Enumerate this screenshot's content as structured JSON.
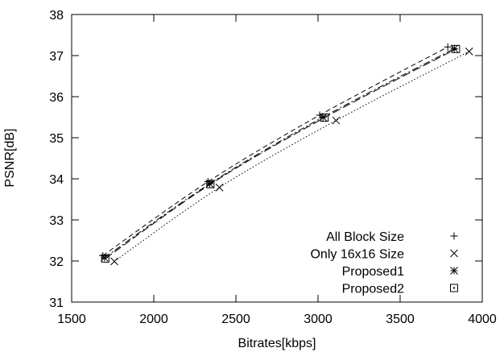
{
  "chart_data": {
    "type": "line",
    "xlabel": "Bitrates[kbps]",
    "ylabel": "PSNR[dB]",
    "xlim": [
      1500,
      4000
    ],
    "ylim": [
      31,
      38
    ],
    "xticks": [
      1500,
      2000,
      2500,
      3000,
      3500,
      4000
    ],
    "yticks": [
      31,
      32,
      33,
      34,
      35,
      36,
      37,
      38
    ],
    "x_tick_labels": [
      "1500",
      "2000",
      "2500",
      "3000",
      "3500",
      "4000"
    ],
    "y_tick_labels": [
      "31",
      "32",
      "33",
      "34",
      "35",
      "36",
      "37",
      "38"
    ],
    "grid": false,
    "legend_position": "bottom-right",
    "series": [
      {
        "name": "All Block Size",
        "marker": "plus",
        "line": "dashed",
        "x": [
          1690,
          2330,
          3010,
          3790
        ],
        "y": [
          32.13,
          33.93,
          35.55,
          37.21
        ]
      },
      {
        "name": "Only 16x16 Size",
        "marker": "cross",
        "line": "dotted",
        "x": [
          1760,
          2400,
          3110,
          3920
        ],
        "y": [
          31.99,
          33.79,
          35.42,
          37.1
        ]
      },
      {
        "name": "Proposed1",
        "marker": "star",
        "line": "dash-dot",
        "x": [
          1700,
          2340,
          3030,
          3830
        ],
        "y": [
          32.08,
          33.88,
          35.5,
          37.17
        ]
      },
      {
        "name": "Proposed2",
        "marker": "boxed-dot",
        "line": "long-dashed",
        "x": [
          1705,
          2345,
          3040,
          3840
        ],
        "y": [
          32.06,
          33.87,
          35.49,
          37.16
        ]
      }
    ]
  }
}
